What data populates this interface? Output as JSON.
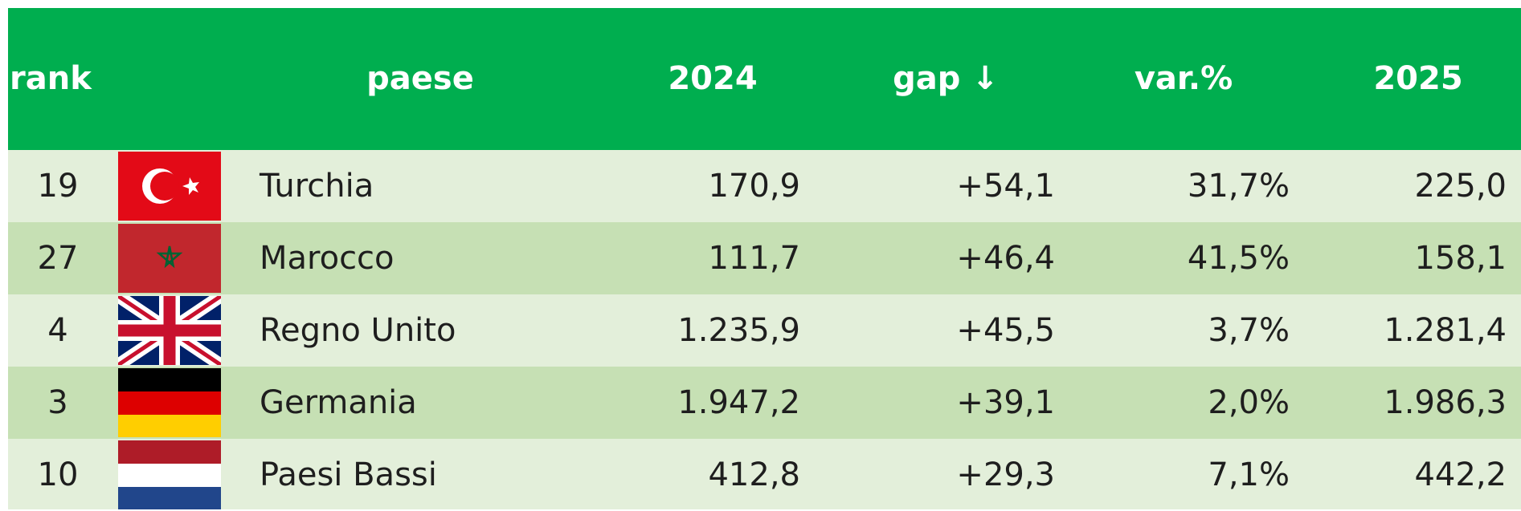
{
  "table": {
    "header": [
      "rank",
      "paese",
      "2024",
      "gap ↓",
      "var.%",
      "2025"
    ],
    "rows": [
      [
        "19",
        "Turchia",
        "170,9",
        "+54,1",
        "31,7%",
        "225,0"
      ],
      [
        "27",
        "Marocco",
        "111,7",
        "+46,4",
        "41,5%",
        "158,1"
      ],
      [
        "4",
        "Regno Unito",
        "1.235,9",
        "+45,5",
        "3,7%",
        "1.281,4"
      ],
      [
        "3",
        "Germania",
        "1.947,2",
        "+39,1",
        "2,0%",
        "1.986,3"
      ],
      [
        "10",
        "Paesi Bassi",
        "412,8",
        "+29,3",
        "7,1%",
        "442,2"
      ]
    ]
  }
}
